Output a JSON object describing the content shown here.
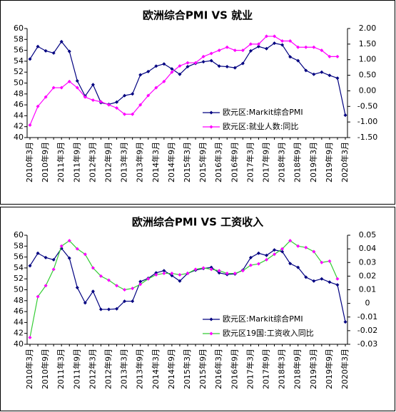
{
  "chart_data": [
    {
      "type": "line",
      "title": "欧洲综合PMI VS 就业",
      "categories": [
        "2010年3月",
        null,
        "2010年9月",
        null,
        "2011年3月",
        null,
        "2011年9月",
        null,
        "2012年3月",
        null,
        "2012年9月",
        null,
        "2013年3月",
        null,
        "2013年9月",
        null,
        "2014年3月",
        null,
        "2014年9月",
        null,
        "2015年3月",
        null,
        "2015年9月",
        null,
        "2016年3月",
        null,
        "2016年9月",
        null,
        "2017年3月",
        null,
        "2017年9月",
        null,
        "2018年3月",
        null,
        "2018年9月",
        null,
        "2019年3月",
        null,
        "2019年9月",
        null,
        "2020年3月"
      ],
      "series": [
        {
          "name": "欧元区:Markit综合PMI",
          "color": "#000080",
          "values": [
            54.4,
            56.7,
            55.9,
            55.5,
            57.6,
            55.8,
            50.4,
            47.6,
            49.7,
            46.4,
            46.1,
            46.5,
            47.7,
            48.0,
            51.5,
            52.1,
            53.1,
            53.5,
            52.6,
            51.6,
            53.0,
            53.6,
            53.9,
            54.1,
            53.1,
            53.0,
            52.8,
            53.6,
            55.9,
            56.7,
            56.3,
            57.3,
            57.0,
            54.8,
            54.1,
            52.3,
            51.6,
            52.0,
            51.4,
            50.9,
            44.1
          ]
        },
        {
          "name": "欧元区:就业人数:同比",
          "color": "#ff00ff",
          "axis": "y2",
          "values": [
            -1.1,
            -0.5,
            -0.2,
            0.1,
            0.1,
            0.3,
            0.1,
            -0.2,
            -0.3,
            -0.35,
            -0.45,
            -0.55,
            -0.75,
            -0.75,
            -0.45,
            -0.15,
            0.1,
            0.3,
            0.6,
            0.8,
            0.9,
            0.9,
            1.1,
            1.2,
            1.3,
            1.4,
            1.3,
            1.3,
            1.5,
            1.5,
            1.75,
            1.75,
            1.6,
            1.6,
            1.4,
            1.4,
            1.4,
            1.3,
            1.1,
            1.1,
            null
          ]
        }
      ],
      "ylim": [
        40,
        60
      ],
      "yticks": [
        40,
        42,
        44,
        46,
        48,
        50,
        52,
        54,
        56,
        58,
        60
      ],
      "y2lim": [
        -1.5,
        2.0
      ],
      "y2ticks": [
        {
          "value": -1.5,
          "label": "-1.50"
        },
        {
          "value": -1.0,
          "label": "-1.00"
        },
        {
          "value": -0.5,
          "label": "-0.50"
        },
        {
          "value": 0,
          "label": "0.00"
        },
        {
          "value": 0.5,
          "label": "0.50"
        },
        {
          "value": 1.0,
          "label": "1.00"
        },
        {
          "value": 1.5,
          "label": "1.50"
        },
        {
          "value": 2.0,
          "label": "2.00"
        }
      ],
      "grid": false
    },
    {
      "type": "line",
      "title": "欧洲综合PMI VS 工资收入",
      "categories": [
        "2010年3月",
        null,
        "2010年9月",
        null,
        "2011年3月",
        null,
        "2011年9月",
        null,
        "2012年3月",
        null,
        "2012年9月",
        null,
        "2013年3月",
        null,
        "2013年9月",
        null,
        "2014年3月",
        null,
        "2014年9月",
        null,
        "2015年3月",
        null,
        "2015年9月",
        null,
        "2016年3月",
        null,
        "2016年9月",
        null,
        "2017年3月",
        null,
        "2017年9月",
        null,
        "2018年3月",
        null,
        "2018年9月",
        null,
        "2019年3月",
        null,
        "2019年9月",
        null,
        "2020年3月"
      ],
      "series": [
        {
          "name": "欧元区:Markit综合PMI",
          "color": "#000080",
          "values": [
            54.4,
            56.7,
            55.9,
            55.5,
            57.6,
            55.8,
            50.4,
            47.6,
            49.7,
            46.4,
            46.4,
            46.5,
            47.9,
            47.9,
            51.5,
            52.1,
            53.1,
            53.5,
            52.6,
            51.6,
            53.0,
            53.6,
            53.9,
            54.1,
            53.1,
            52.8,
            52.9,
            53.6,
            55.9,
            56.7,
            56.3,
            57.3,
            57.0,
            54.8,
            54.1,
            52.3,
            51.6,
            52.0,
            51.4,
            50.9,
            44.1
          ]
        },
        {
          "name": "欧元区19国:工资收入同比",
          "color": "#33cc33",
          "marker_color": "#ff00ff",
          "axis": "y2",
          "values": [
            -0.025,
            0.005,
            0.013,
            0.025,
            0.042,
            0.046,
            0.04,
            0.036,
            0.026,
            0.02,
            0.017,
            0.013,
            0.01,
            0.011,
            0.014,
            0.018,
            0.021,
            0.022,
            0.022,
            0.021,
            0.022,
            0.025,
            0.026,
            0.025,
            0.024,
            0.022,
            0.022,
            0.024,
            0.028,
            0.029,
            0.032,
            0.036,
            0.04,
            0.046,
            0.042,
            0.041,
            0.038,
            0.03,
            0.031,
            0.018,
            null
          ]
        }
      ],
      "ylim": [
        40,
        60
      ],
      "yticks": [
        40,
        42,
        44,
        46,
        48,
        50,
        52,
        54,
        56,
        58,
        60
      ],
      "y2lim": [
        -0.03,
        0.05
      ],
      "y2ticks": [
        -0.03,
        -0.02,
        -0.01,
        0,
        0.01,
        0.02,
        0.03,
        0.04,
        0.05
      ],
      "grid": false
    }
  ]
}
